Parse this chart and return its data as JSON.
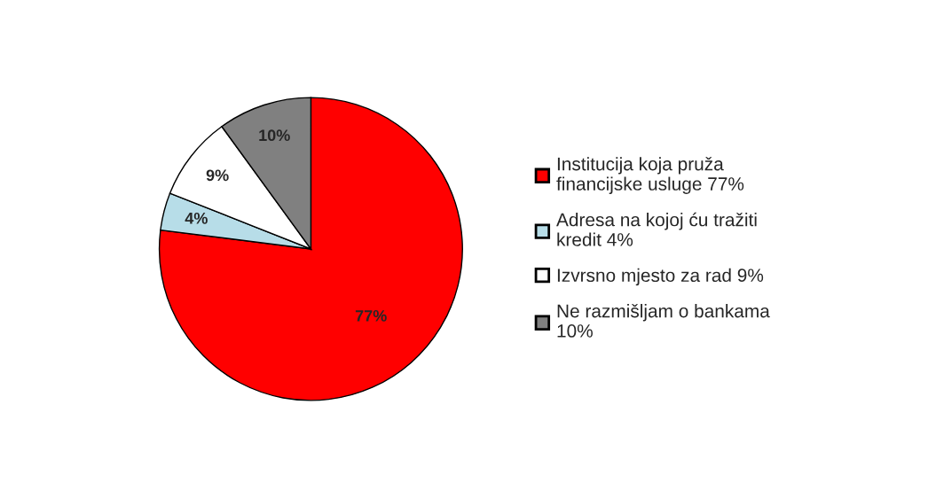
{
  "chart_data": {
    "type": "pie",
    "categories": [
      "Institucija koja pruža\nfinancijske usluge 77%",
      "Adresa na kojoj ću tražiti\nkredit 4%",
      "Izvrsno mjesto za rad 9%",
      "Ne razmišljam o bankama\n10%"
    ],
    "values": [
      77,
      4,
      9,
      10
    ],
    "colors": [
      "#ff0000",
      "#b7dde8",
      "#ffffff",
      "#808080"
    ],
    "value_labels": [
      "77%",
      "4%",
      "9%",
      "10%"
    ],
    "legend": "right"
  }
}
